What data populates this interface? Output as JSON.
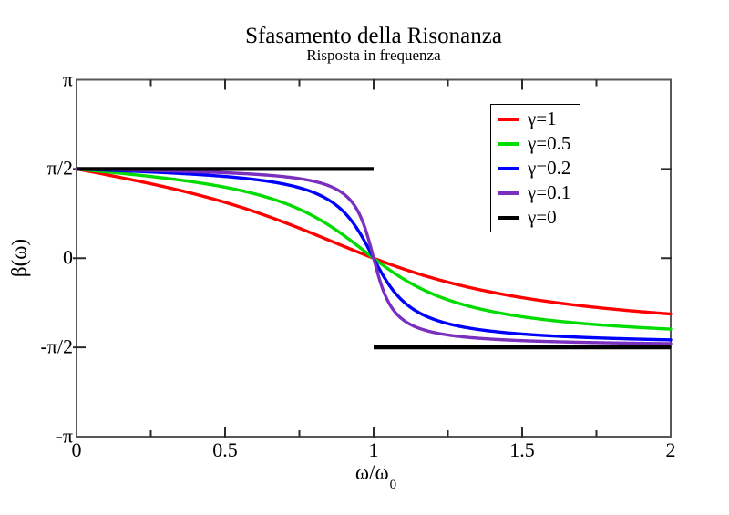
{
  "page": {
    "title": "Sfasamento della Risonanza",
    "subtitle": "Risposta in frequenza"
  },
  "axis": {
    "xlabel_main": "ω/ω",
    "xlabel_sub": "0",
    "ylabel": "β(ω)"
  },
  "chart_data": {
    "type": "line",
    "title": "Sfasamento della Risonanza",
    "subtitle": "Risposta in frequenza",
    "xlabel": "ω/ω₀",
    "ylabel": "β(ω)",
    "xlim": [
      0,
      2
    ],
    "ylim_rad": [
      -3.14159265,
      3.14159265
    ],
    "grid": false,
    "legend_position": "upper right",
    "function": "β(x) = atan((1 - x²)/(γ·x)) with x = ω/ω₀ ; for γ=0 a step: β=π/2 for x<1, β=-π/2 for x>1",
    "x_major_ticks": [
      0,
      0.5,
      1,
      1.5,
      2
    ],
    "x_tick_labels": [
      "0",
      "0.5",
      "1",
      "1.5",
      "2"
    ],
    "x_minor_ticks": [
      0.25,
      0.75,
      1.25,
      1.75
    ],
    "y_major_ticks_rad": [
      3.14159265,
      1.57079633,
      0,
      -1.57079633,
      -3.14159265
    ],
    "y_tick_labels": [
      "π",
      "π/2",
      "0",
      "-π/2",
      "-π"
    ],
    "series": [
      {
        "label": "γ=1",
        "gamma": 1,
        "color": "#ff0000",
        "width": 3.4
      },
      {
        "label": "γ=0.5",
        "gamma": 0.5,
        "color": "#00dc00",
        "width": 3.4
      },
      {
        "label": "γ=0.2",
        "gamma": 0.2,
        "color": "#0000ff",
        "width": 3.4
      },
      {
        "label": "γ=0.1",
        "gamma": 0.1,
        "color": "#7b2fbf",
        "width": 3.4
      },
      {
        "label": "γ=0",
        "gamma": 0,
        "color": "#000000",
        "width": 4.2
      }
    ],
    "frame_color": "#575757",
    "tick_color": "#2b2b2b"
  }
}
